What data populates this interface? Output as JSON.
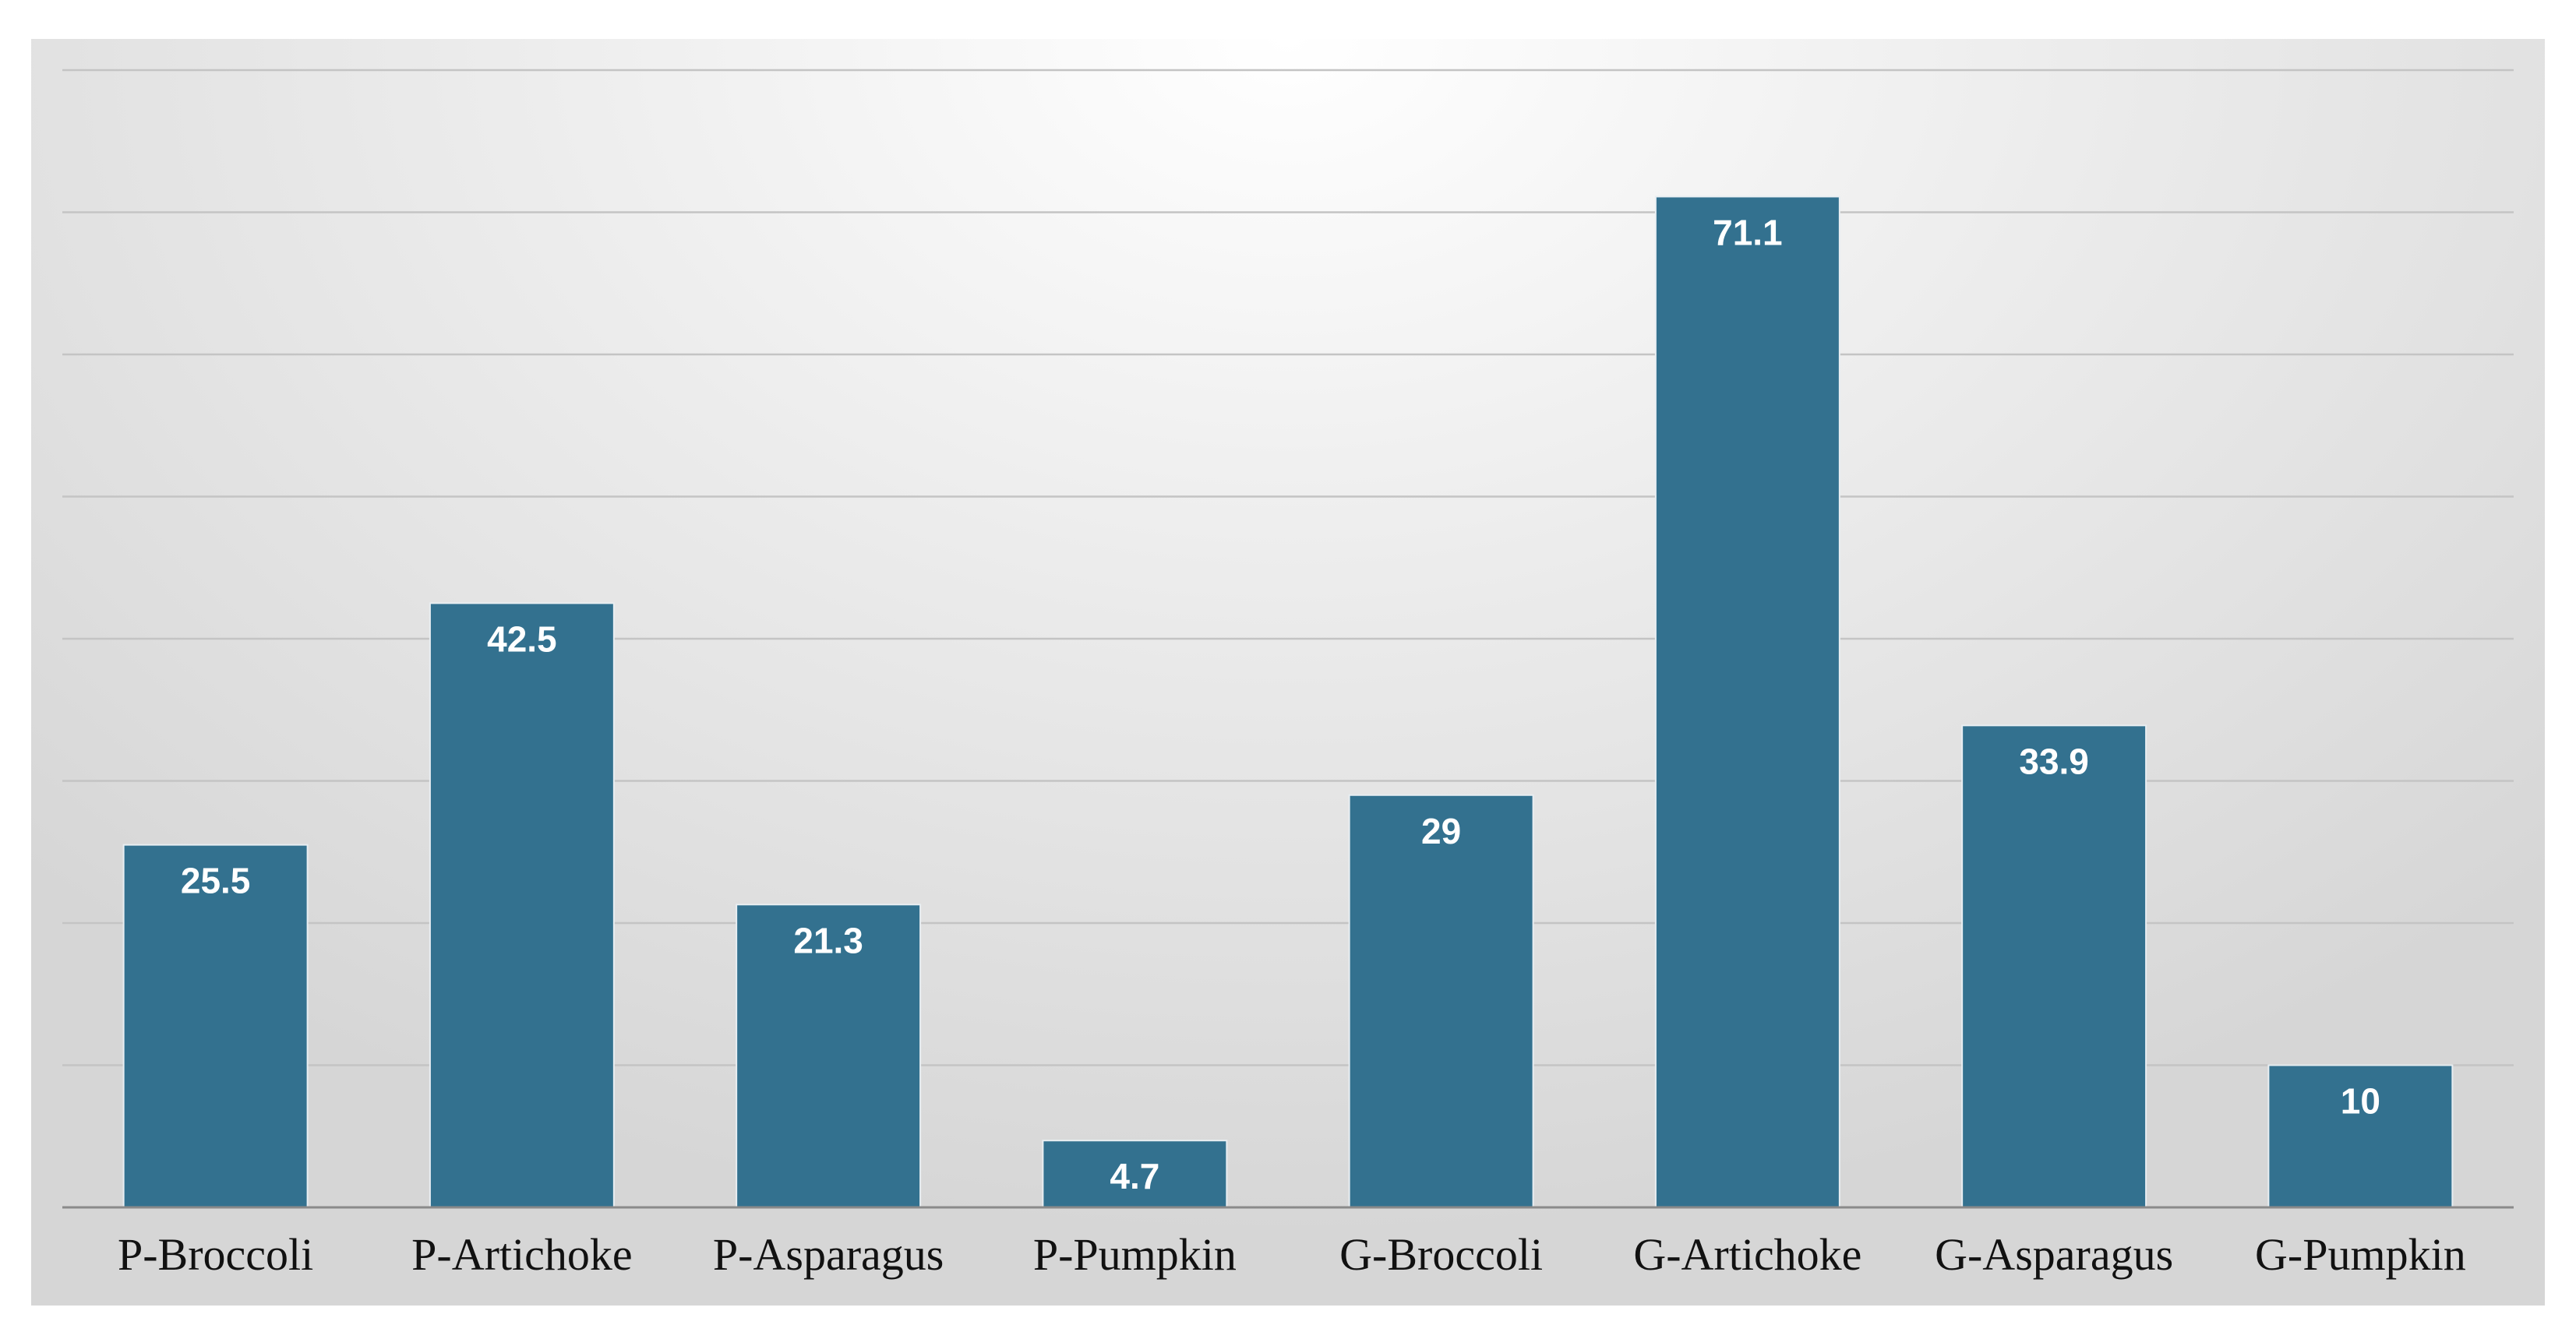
{
  "chart_data": {
    "type": "bar",
    "title": "",
    "xlabel": "",
    "ylabel": "",
    "categories": [
      "P-Broccoli",
      "P-Artichoke",
      "P-Asparagus",
      "P-Pumpkin",
      "G-Broccoli",
      "G-Artichoke",
      "G-Asparagus",
      "G-Pumpkin"
    ],
    "values": [
      25.5,
      42.5,
      21.3,
      4.7,
      29,
      71.1,
      33.9,
      10
    ],
    "value_labels": [
      "25.5",
      "42.5",
      "21.3",
      "4.7",
      "29",
      "71.1",
      "33.9",
      "10"
    ],
    "ylim": [
      0,
      80
    ],
    "ytick_step": 10,
    "y_tick_labels_visible": false,
    "grid": true,
    "legend": "none",
    "bar_color": "#33718f",
    "grid_color": "#c4c4c4"
  }
}
